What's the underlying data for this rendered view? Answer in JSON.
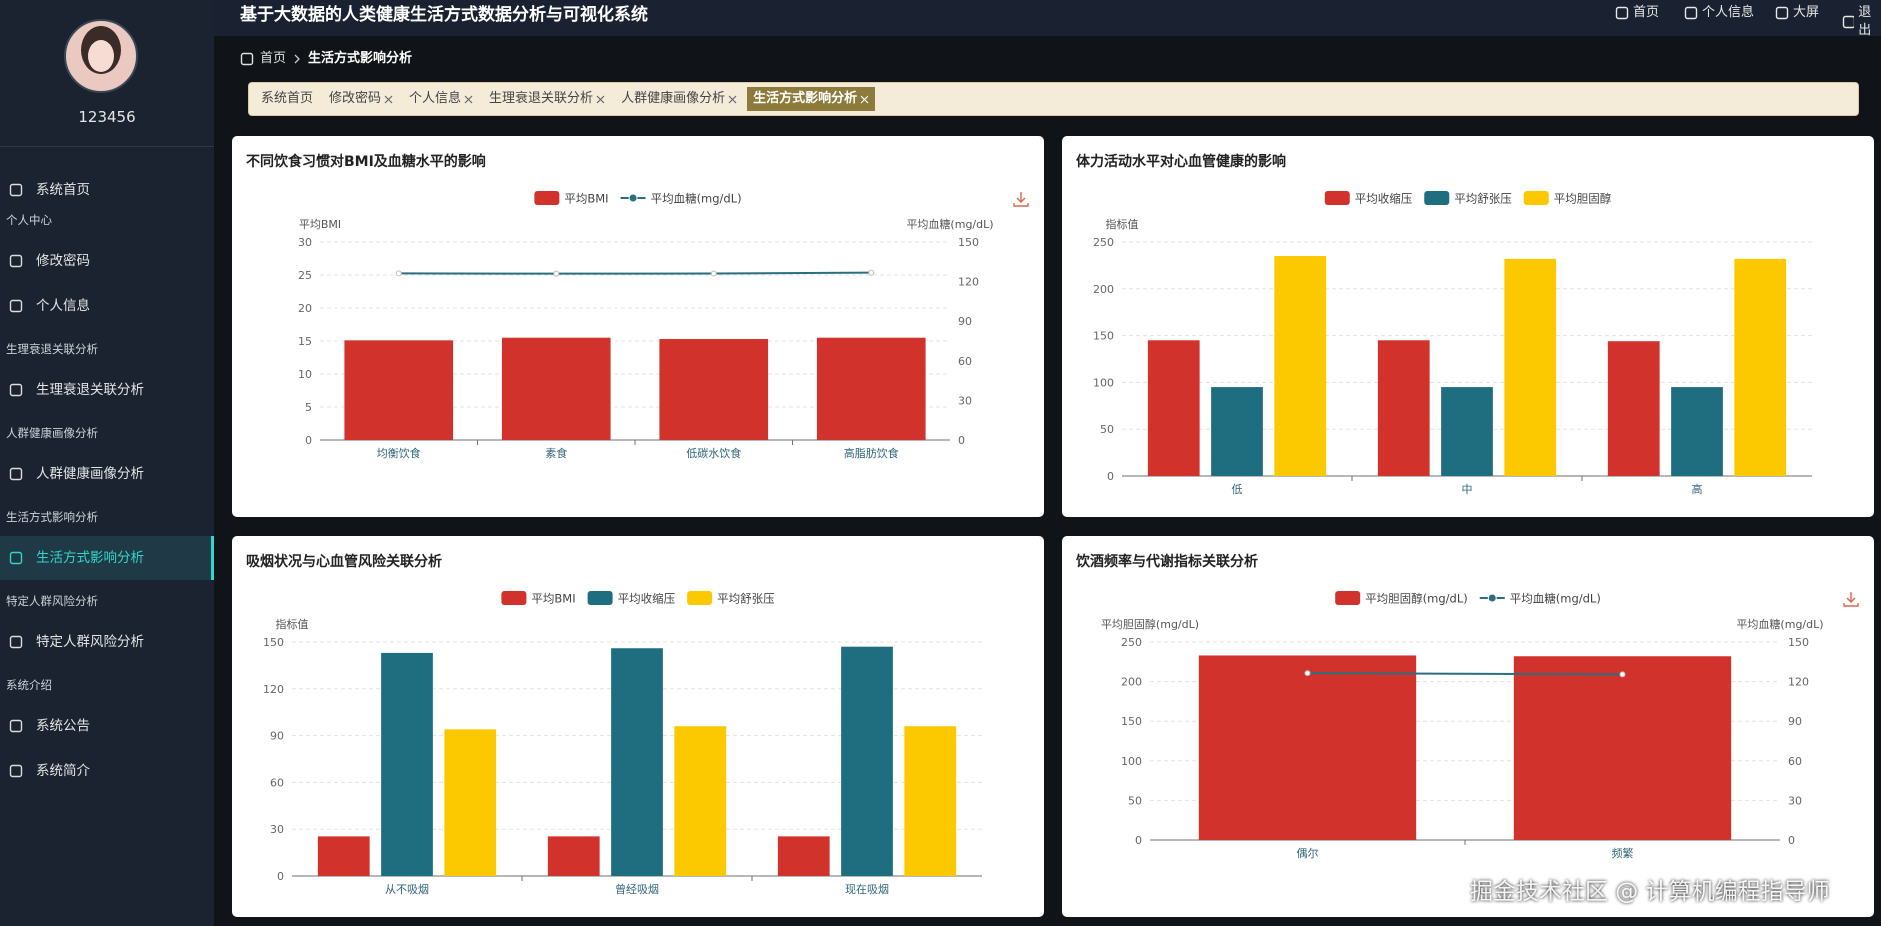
{
  "header": {
    "title": "基于大数据的人类健康生活方式数据分析与可视化系统",
    "nav": [
      "首页",
      "个人信息",
      "大屏",
      "退出"
    ]
  },
  "sidebar": {
    "user": "123456",
    "home": "系统首页",
    "groups": [
      {
        "title": "个人中心",
        "items": [
          "修改密码",
          "个人信息"
        ]
      },
      {
        "title": "生理衰退关联分析",
        "items": [
          "生理衰退关联分析"
        ]
      },
      {
        "title": "人群健康画像分析",
        "items": [
          "人群健康画像分析"
        ]
      },
      {
        "title": "生活方式影响分析",
        "items": [
          "生活方式影响分析"
        ]
      },
      {
        "title": "特定人群风险分析",
        "items": [
          "特定人群风险分析"
        ]
      },
      {
        "title": "系统介绍",
        "items": [
          "系统公告",
          "系统简介"
        ]
      }
    ]
  },
  "breadcrumb": [
    "首页",
    "生活方式影响分析"
  ],
  "tabs": [
    "系统首页",
    "修改密码",
    "个人信息",
    "生理衰退关联分析",
    "人群健康画像分析",
    "生活方式影响分析"
  ],
  "watermark": "掘金技术社区 @ 计算机编程指导师",
  "chart_data": [
    {
      "type": "bar",
      "title": "不同饮食习惯对BMI及血糖水平的影响",
      "categories": [
        "均衡饮食",
        "素食",
        "低碳水饮食",
        "高脂肪饮食"
      ],
      "ylabel": "平均BMI",
      "y2label": "平均血糖(mg/dL)",
      "ylim": [
        0,
        30
      ],
      "yticks": [
        0,
        5,
        10,
        15,
        20,
        25,
        30
      ],
      "y2lim": [
        0,
        150
      ],
      "y2ticks": [
        0,
        30,
        60,
        90,
        120,
        150
      ],
      "grid": true,
      "series": [
        {
          "name": "平均BMI",
          "type": "bar",
          "color": "#d1322b",
          "values": [
            15.1,
            15.5,
            15.3,
            15.5
          ]
        },
        {
          "name": "平均血糖(mg/dL)",
          "type": "line",
          "axis": "y2",
          "color": "#2b6e7f",
          "values": [
            126.2,
            126.0,
            126.1,
            126.8
          ]
        }
      ]
    },
    {
      "type": "bar",
      "title": "体力活动水平对心血管健康的影响",
      "categories": [
        "低",
        "中",
        "高"
      ],
      "ylabel": "指标值",
      "ylim": [
        0,
        250
      ],
      "yticks": [
        0,
        50,
        100,
        150,
        200,
        250
      ],
      "grid": true,
      "series": [
        {
          "name": "平均收缩压",
          "color": "#d1322b",
          "values": [
            145,
            145,
            144
          ]
        },
        {
          "name": "平均舒张压",
          "color": "#1f6e80",
          "values": [
            95,
            95,
            95
          ]
        },
        {
          "name": "平均胆固醇",
          "color": "#fcc800",
          "values": [
            235,
            232,
            232
          ]
        }
      ]
    },
    {
      "type": "bar",
      "title": "吸烟状况与心血管风险关联分析",
      "categories": [
        "从不吸烟",
        "曾经吸烟",
        "现在吸烟"
      ],
      "ylabel": "指标值",
      "ylim": [
        0,
        150
      ],
      "yticks": [
        0,
        30,
        60,
        90,
        120,
        150
      ],
      "grid": true,
      "series": [
        {
          "name": "平均BMI",
          "color": "#d1322b",
          "values": [
            25.4,
            25.4,
            25.4
          ]
        },
        {
          "name": "平均收缩压",
          "color": "#1f6e80",
          "values": [
            143,
            146,
            147
          ]
        },
        {
          "name": "平均舒张压",
          "color": "#fcc800",
          "values": [
            94,
            96,
            96
          ]
        }
      ]
    },
    {
      "type": "bar",
      "title": "饮酒频率与代谢指标关联分析",
      "categories": [
        "偶尔",
        "频繁"
      ],
      "ylabel": "平均胆固醇(mg/dL)",
      "y2label": "平均血糖(mg/dL)",
      "ylim": [
        0,
        250
      ],
      "yticks": [
        0,
        50,
        100,
        150,
        200,
        250
      ],
      "y2lim": [
        0,
        150
      ],
      "y2ticks": [
        0,
        30,
        60,
        90,
        120,
        150
      ],
      "grid": true,
      "series": [
        {
          "name": "平均胆固醇(mg/dL)",
          "type": "bar",
          "color": "#d1322b",
          "values": [
            233,
            232
          ]
        },
        {
          "name": "平均血糖(mg/dL)",
          "type": "line",
          "axis": "y2",
          "color": "#2b6e7f",
          "values": [
            126.4,
            125.5
          ]
        }
      ]
    }
  ]
}
